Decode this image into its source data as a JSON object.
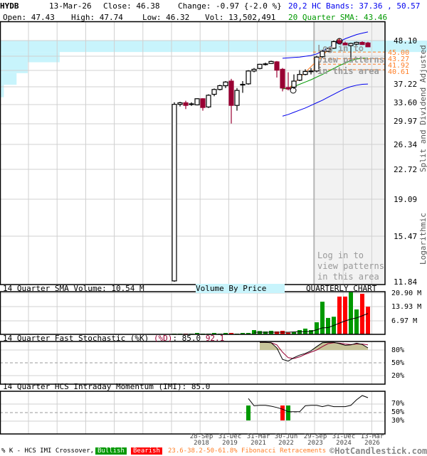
{
  "header": {
    "symbol": "HYDB",
    "date": "13-Mar-26",
    "close": "Close: 46.38",
    "change": "Change: -0.97 {-2.0 %}",
    "open": "Open: 47.43",
    "high": "High: 47.74",
    "low": "Low: 46.32",
    "vol": "Vol: 13,502,491",
    "bands": "20,2 HC Bands: 37.36 , 50.57",
    "sma": "20 Quarter SMA: 43.46"
  },
  "colors": {
    "up": "#ffffff",
    "down": "#990033",
    "vol_up": "#009900",
    "vol_down": "#ff0000",
    "band": "#0000ee",
    "sma": "#009900",
    "fib": "#ff7f27",
    "vbp": "#c8f4fc"
  },
  "price_axis": {
    "labels": [
      "48.10",
      "37.22",
      "33.60",
      "29.97",
      "26.34",
      "22.72",
      "19.09",
      "15.47",
      "11.84"
    ],
    "scale": "logarithmic",
    "side_note": "Split and Dividend Adjusted",
    "scale_note": "Logarithmic"
  },
  "fib": {
    "levels": [
      "45.00",
      "43.27",
      "41.92",
      "40.61"
    ],
    "legend": "23.6-38.2-50-61.8% Fibonacci Retracements"
  },
  "login_note": "Log in to view patterns in this area",
  "chart_data": {
    "type": "candlestick",
    "candles": [
      [
        11.9,
        33.6,
        11.84,
        33.2
      ],
      [
        33.2,
        33.7,
        32.8,
        33.5
      ],
      [
        33.5,
        33.9,
        32.3,
        33.0
      ],
      [
        33.2,
        33.6,
        32.9,
        33.3
      ],
      [
        33.1,
        34.4,
        33.0,
        34.3
      ],
      [
        34.3,
        34.4,
        32.0,
        32.6
      ],
      [
        32.7,
        35.2,
        32.5,
        35.0
      ],
      [
        35.2,
        36.4,
        34.8,
        36.2
      ],
      [
        36.2,
        37.2,
        36.0,
        37.0
      ],
      [
        37.0,
        38.0,
        36.5,
        37.8
      ],
      [
        38.0,
        38.5,
        29.7,
        33.0
      ],
      [
        33.0,
        36.5,
        32.0,
        36.0
      ],
      [
        37.2,
        38.0,
        35.5,
        37.3
      ],
      [
        37.4,
        40.5,
        37.2,
        40.3
      ],
      [
        40.3,
        41.0,
        40.0,
        40.7
      ],
      [
        40.9,
        42.0,
        40.7,
        41.9
      ],
      [
        42.0,
        42.3,
        41.6,
        42.0
      ],
      [
        42.1,
        42.8,
        42.0,
        42.6
      ],
      [
        42.5,
        42.7,
        38.8,
        40.5
      ],
      [
        40.7,
        41.0,
        35.8,
        36.5
      ],
      [
        36.6,
        40.0,
        36.0,
        36.3
      ],
      [
        36.7,
        39.5,
        36.3,
        38.0
      ],
      [
        38.2,
        40.5,
        38.0,
        39.5
      ],
      [
        39.5,
        40.7,
        39.3,
        40.2
      ],
      [
        40.2,
        41.0,
        39.5,
        40.3
      ],
      [
        40.3,
        44.0,
        40.0,
        43.7
      ],
      [
        43.8,
        45.6,
        43.5,
        45.2
      ],
      [
        45.2,
        46.2,
        45.0,
        45.9
      ],
      [
        46.0,
        48.1,
        45.8,
        47.8
      ],
      [
        48.1,
        48.6,
        47.2,
        47.4
      ],
      [
        47.4,
        47.8,
        46.8,
        46.9
      ],
      [
        46.7,
        47.5,
        43.0,
        47.3
      ],
      [
        47.1,
        47.8,
        46.8,
        47.6
      ],
      [
        47.6,
        47.9,
        46.9,
        47.0
      ],
      [
        47.43,
        47.74,
        46.32,
        46.38
      ]
    ],
    "band_start_index": 19,
    "upper_band": [
      43.4,
      43.5,
      43.6,
      43.7,
      43.9,
      44.1,
      44.5,
      45.2,
      46.0,
      47.0,
      47.8,
      48.6,
      49.2,
      49.8,
      50.2,
      50.57
    ],
    "lower_band": [
      31.0,
      31.3,
      31.7,
      32.1,
      32.5,
      33.0,
      33.5,
      34.0,
      34.6,
      35.2,
      35.8,
      36.4,
      36.8,
      37.1,
      37.3,
      37.36
    ],
    "sma20": [
      36.3,
      36.5,
      36.8,
      37.3,
      37.8,
      38.3,
      38.9,
      39.5,
      40.2,
      40.9,
      41.6,
      42.2,
      42.8,
      43.2,
      43.4,
      43.46
    ],
    "volume_m": [
      0.36,
      0.36,
      0.36,
      0.36,
      0.72,
      0.36,
      0.36,
      0.72,
      0.36,
      0.72,
      0.72,
      0.36,
      0.72,
      0.72,
      2.16,
      1.68,
      1.44,
      1.8,
      1.44,
      1.8,
      0.84,
      1.32,
      2.16,
      2.9,
      2.16,
      6.1,
      16.5,
      8.3,
      8.9,
      19.1,
      19.1,
      21.3,
      12.6,
      20.5,
      14.0
    ],
    "volume_dir": [
      "u",
      "u",
      "d",
      "u",
      "u",
      "u",
      "u",
      "u",
      "u",
      "u",
      "d",
      "u",
      "u",
      "u",
      "u",
      "u",
      "u",
      "u",
      "d",
      "d",
      "d",
      "u",
      "u",
      "u",
      "u",
      "u",
      "u",
      "u",
      "u",
      "d",
      "d",
      "u",
      "u",
      "d",
      "d"
    ],
    "volume_sma_start": 14,
    "volume_sma": [
      1.1,
      1.1,
      1.1,
      1.1,
      1.1,
      1.1,
      1.1,
      1.2,
      1.3,
      1.4,
      1.5,
      2.3,
      3.3,
      3.4,
      4.5,
      5.7,
      6.8,
      7.7,
      8.3,
      9.4,
      10.54
    ],
    "stoch_start": 15,
    "stoch_k": [
      98,
      98,
      97,
      85,
      58,
      54,
      62,
      68,
      72,
      78,
      88,
      97,
      98,
      98,
      95,
      91,
      92,
      96,
      93,
      85
    ],
    "stoch_d": [
      98,
      98,
      97,
      92,
      75,
      62,
      60,
      64,
      70,
      75,
      80,
      88,
      95,
      97,
      96,
      94,
      93,
      94,
      94,
      92.1
    ],
    "imi_start": 13,
    "imi": [
      83,
      66,
      67,
      67,
      65,
      62,
      58,
      52,
      52,
      52,
      66,
      67,
      67,
      64,
      67,
      64,
      64,
      64,
      67,
      80,
      90,
      85
    ],
    "imi_crossovers": [
      {
        "index": 13,
        "type": "bullish"
      },
      {
        "index": 19,
        "type": "bearish"
      },
      {
        "index": 20,
        "type": "bullish"
      }
    ],
    "vbp_rows": [
      {
        "price_from": 45.0,
        "price_to": 48.1,
        "weight": 1.0
      },
      {
        "price_from": 42.4,
        "price_to": 45.0,
        "weight": 0.155
      },
      {
        "price_from": 39.8,
        "price_to": 42.4,
        "weight": 0.072
      },
      {
        "price_from": 37.2,
        "price_to": 39.8,
        "weight": 0.043
      },
      {
        "price_from": 34.6,
        "price_to": 37.2,
        "weight": 0.01
      }
    ]
  },
  "volume_panel": {
    "title": "14 Quarter SMA Volume: 10.54 M",
    "vbp_label": "Volume By Price",
    "chart_type": "QUARTERLY CHART",
    "labels": [
      "20.90 M",
      "13.93 M",
      "6.97 M"
    ]
  },
  "stoch_panel": {
    "title": "14 Quarter Fast Stochastic (%K)",
    "d_label": "(%D)",
    "values": ": 85.0",
    "d_value": "92.1",
    "labels": [
      "80%",
      "50%",
      "20%"
    ]
  },
  "imi_panel": {
    "title": "14 Quarter HCS Intraday Momentum (IMI): 85.0",
    "labels": [
      "70%",
      "50%",
      "30%"
    ]
  },
  "x_axis": [
    {
      "d": "28-Sep",
      "y": "2018"
    },
    {
      "d": "31-Dec",
      "y": "2019"
    },
    {
      "d": "31-Mar",
      "y": "2021"
    },
    {
      "d": "30-Jun",
      "y": "2022"
    },
    {
      "d": "29-Sep",
      "y": "2023"
    },
    {
      "d": "31-Dec",
      "y": "2024"
    },
    {
      "d": "13-Mar",
      "y": "2026"
    }
  ],
  "footer": {
    "legend": "% K - HCS IMI Crossover,",
    "bullish": "Bullish",
    "bearish": "Bearish",
    "copyright": "©HotCandlestick.com"
  }
}
